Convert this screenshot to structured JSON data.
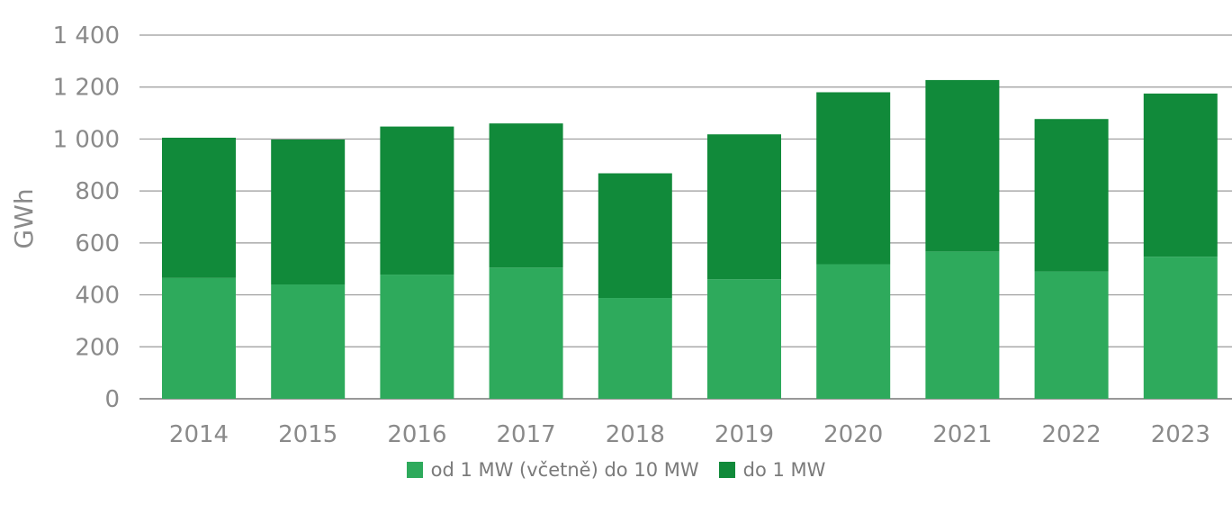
{
  "chart_data": {
    "type": "bar",
    "stacked": true,
    "ylabel": "GWh",
    "ylim": [
      0,
      1400
    ],
    "yticks": [
      0,
      200,
      400,
      600,
      800,
      1000,
      1200,
      1400
    ],
    "ytick_labels": [
      "0",
      "200",
      "400",
      "600",
      "800",
      "1 000",
      "1 200",
      "1 400"
    ],
    "categories": [
      "2014",
      "2015",
      "2016",
      "2017",
      "2018",
      "2019",
      "2020",
      "2021",
      "2022",
      "2023"
    ],
    "series": [
      {
        "name": "od 1 MW (včetně) do 10 MW",
        "color": "#2eaa5c",
        "values": [
          465,
          440,
          478,
          505,
          388,
          460,
          518,
          567,
          490,
          547
        ]
      },
      {
        "name": "do 1 MW",
        "color": "#118a3a",
        "values": [
          540,
          558,
          570,
          555,
          480,
          558,
          662,
          660,
          587,
          628
        ]
      }
    ],
    "grid": true,
    "legend_position": "bottom"
  }
}
